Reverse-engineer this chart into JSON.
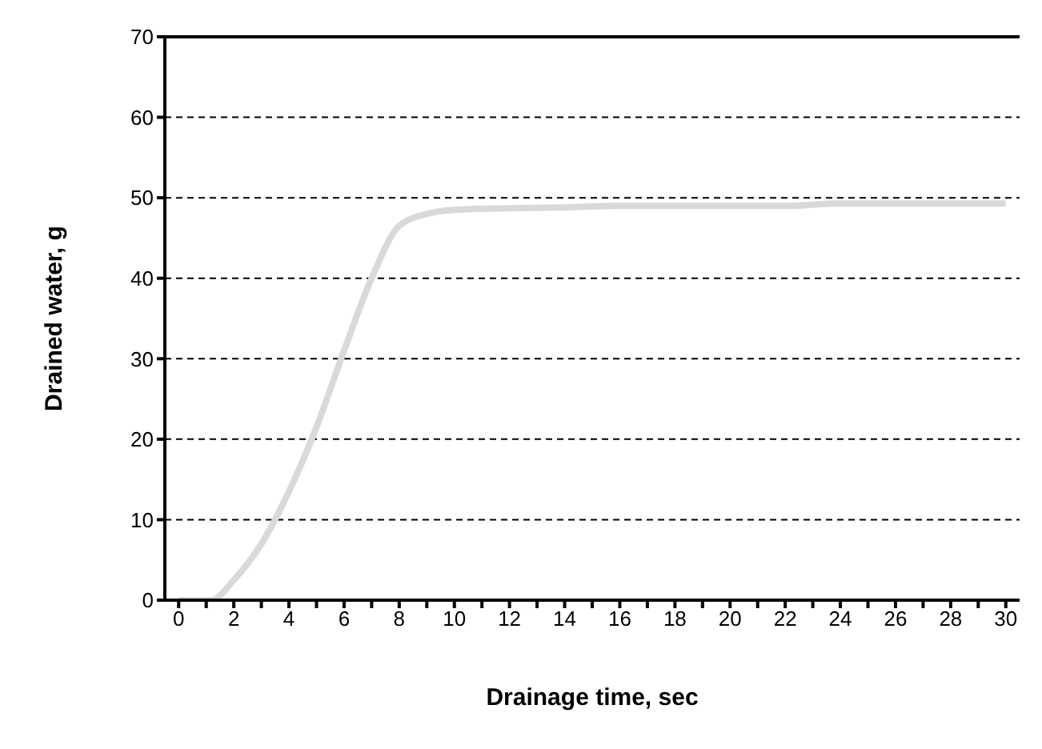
{
  "chart_data": {
    "type": "line",
    "xlabel": "Drainage time, sec",
    "ylabel": "Drained water, g",
    "x": [
      0,
      1.2,
      2,
      3,
      4,
      5,
      6,
      7,
      8,
      9,
      10,
      12,
      14,
      16,
      20,
      22,
      24,
      30
    ],
    "series": [
      {
        "color": "#d9d9d9",
        "values": [
          0,
          0,
          2.5,
          7,
          13.5,
          21.5,
          31,
          40,
          46.5,
          48,
          48.5,
          48.7,
          48.8,
          49,
          49,
          49,
          49.3,
          49.3
        ]
      }
    ],
    "xlim": [
      -0.5,
      30.5
    ],
    "xticks": [
      0,
      {
        "value": 1,
        "label": null
      },
      2,
      {
        "value": 3,
        "label": null
      },
      4,
      {
        "value": 5,
        "label": null
      },
      6,
      {
        "value": 7,
        "label": null
      },
      8,
      {
        "value": 9,
        "label": null
      },
      10,
      {
        "value": 11,
        "label": null
      },
      12,
      {
        "value": 13,
        "label": null
      },
      14,
      {
        "value": 15,
        "label": null
      },
      16,
      {
        "value": 17,
        "label": null
      },
      18,
      {
        "value": 19,
        "label": null
      },
      20,
      {
        "value": 21,
        "label": null
      },
      22,
      {
        "value": 23,
        "label": null
      },
      24,
      {
        "value": 25,
        "label": null
      },
      26,
      {
        "value": 27,
        "label": null
      },
      28,
      {
        "value": 29,
        "label": null
      },
      30
    ],
    "ylim": [
      0,
      70
    ],
    "yticks": [
      0,
      10,
      20,
      30,
      40,
      50,
      60,
      70
    ],
    "grid": "y",
    "marker": "none",
    "line_style": "solid"
  }
}
